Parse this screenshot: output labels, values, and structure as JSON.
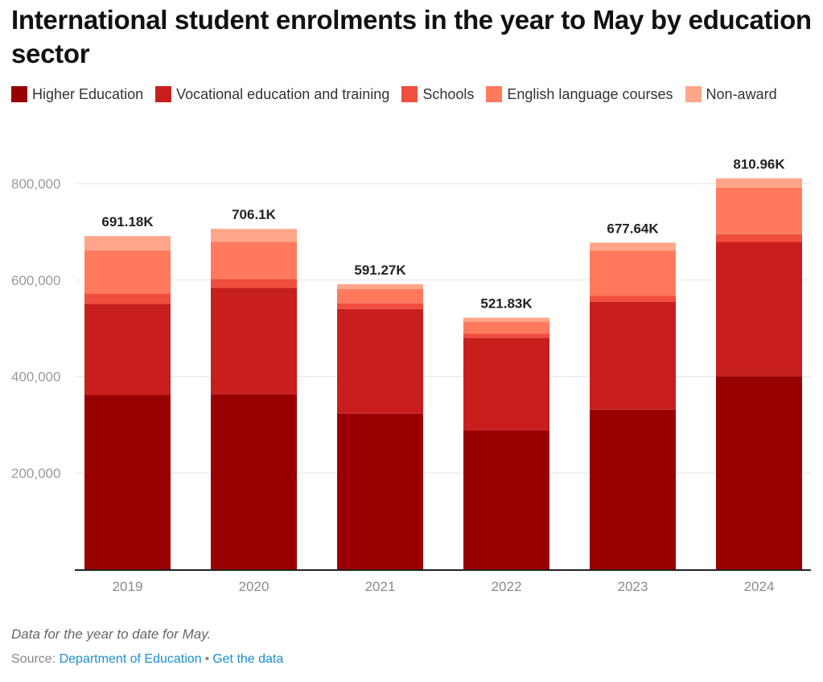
{
  "chart_data": {
    "type": "bar",
    "stacked": true,
    "title": "International student enrolments in the year to May by education sector",
    "xlabel": "",
    "ylabel": "",
    "categories": [
      "2019",
      "2020",
      "2021",
      "2022",
      "2023",
      "2024"
    ],
    "series": [
      {
        "name": "Higher Education",
        "color": "#990000",
        "values": [
          361500,
          363000,
          322500,
          288000,
          331000,
          400500
        ]
      },
      {
        "name": "Vocational education and training",
        "color": "#c81e1e",
        "values": [
          189000,
          221000,
          217500,
          192000,
          224000,
          278500
        ]
      },
      {
        "name": "Schools",
        "color": "#f04e3e",
        "values": [
          21800,
          18000,
          11700,
          9000,
          12000,
          16000
        ]
      },
      {
        "name": "English language courses",
        "color": "#ff7a5c",
        "values": [
          89500,
          77500,
          30000,
          25000,
          94000,
          97000
        ]
      },
      {
        "name": "Non-award",
        "color": "#ffa68a",
        "values": [
          29380,
          26600,
          9570,
          7830,
          16640,
          18960
        ]
      }
    ],
    "totals_labels": [
      "691.18K",
      "706.1K",
      "591.27K",
      "521.83K",
      "677.64K",
      "810.96K"
    ],
    "ylim": [
      0,
      800000
    ],
    "yticks": [
      200000,
      400000,
      600000,
      800000
    ],
    "ytick_labels": [
      "200,000",
      "400,000",
      "600,000",
      "800,000"
    ],
    "grid": true,
    "legend_position": "top-left"
  },
  "footer": {
    "note": "Data for the year to date for May.",
    "source_prefix": "Source: ",
    "source_link": "Department of Education",
    "separator": "•",
    "get_data_link": "Get the data"
  }
}
